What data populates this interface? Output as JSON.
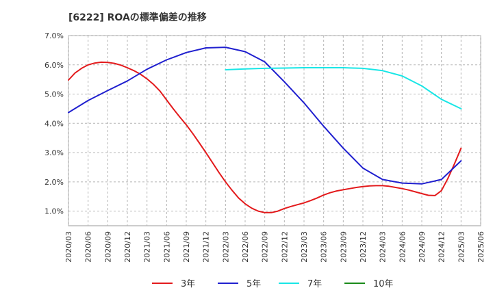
{
  "chart_data": {
    "type": "line",
    "title": "[6222]  ROAの標準偏差の推移",
    "xlabel": "",
    "ylabel": "",
    "ylim": [
      0.5,
      7.0
    ],
    "yticks": [
      1.0,
      2.0,
      3.0,
      4.0,
      5.0,
      6.0,
      7.0
    ],
    "ytick_labels": [
      "1.0%",
      "2.0%",
      "3.0%",
      "4.0%",
      "5.0%",
      "6.0%",
      "7.0%"
    ],
    "xticks": [
      "2020/03",
      "2020/06",
      "2020/09",
      "2020/12",
      "2021/03",
      "2021/06",
      "2021/09",
      "2021/12",
      "2022/03",
      "2022/06",
      "2022/09",
      "2022/12",
      "2023/03",
      "2023/06",
      "2023/09",
      "2023/12",
      "2024/03",
      "2024/06",
      "2024/09",
      "2024/12",
      "2025/03",
      "2025/06"
    ],
    "grid": true,
    "legend_position": "bottom",
    "series": [
      {
        "name": "3年",
        "color": "#e31a1c",
        "x": [
          "2020/03",
          "2020/04",
          "2020/05",
          "2020/06",
          "2020/07",
          "2020/08",
          "2020/09",
          "2020/10",
          "2020/11",
          "2020/12",
          "2021/01",
          "2021/02",
          "2021/03",
          "2021/04",
          "2021/05",
          "2021/06",
          "2021/07",
          "2021/08",
          "2021/09",
          "2021/10",
          "2021/11",
          "2021/12",
          "2022/01",
          "2022/02",
          "2022/03",
          "2022/04",
          "2022/05",
          "2022/06",
          "2022/07",
          "2022/08",
          "2022/09",
          "2022/10",
          "2022/11",
          "2022/12",
          "2023/01",
          "2023/02",
          "2023/03",
          "2023/04",
          "2023/05",
          "2023/06",
          "2023/07",
          "2023/08",
          "2023/09",
          "2023/10",
          "2023/11",
          "2023/12",
          "2024/01",
          "2024/02",
          "2024/03",
          "2024/04",
          "2024/05",
          "2024/06",
          "2024/07",
          "2024/08",
          "2024/09",
          "2024/10",
          "2024/11",
          "2024/12",
          "2025/01",
          "2025/02",
          "2025/03"
        ],
        "values": [
          5.48,
          5.72,
          5.88,
          6.0,
          6.06,
          6.09,
          6.08,
          6.05,
          5.99,
          5.9,
          5.8,
          5.68,
          5.52,
          5.33,
          5.1,
          4.8,
          4.5,
          4.22,
          3.95,
          3.65,
          3.33,
          3.0,
          2.66,
          2.32,
          2.0,
          1.71,
          1.45,
          1.25,
          1.1,
          1.0,
          0.95,
          0.95,
          1.0,
          1.09,
          1.16,
          1.22,
          1.28,
          1.36,
          1.45,
          1.55,
          1.63,
          1.69,
          1.73,
          1.77,
          1.81,
          1.84,
          1.86,
          1.87,
          1.87,
          1.85,
          1.81,
          1.77,
          1.72,
          1.66,
          1.6,
          1.54,
          1.53,
          1.7,
          2.12,
          2.62,
          3.15
        ]
      },
      {
        "name": "5年",
        "color": "#1f1fcf",
        "x": [
          "2020/03",
          "2020/06",
          "2020/09",
          "2020/12",
          "2021/03",
          "2021/06",
          "2021/09",
          "2021/12",
          "2022/03",
          "2022/06",
          "2022/09",
          "2022/12",
          "2023/03",
          "2023/06",
          "2023/09",
          "2023/12",
          "2024/03",
          "2024/06",
          "2024/09",
          "2024/12",
          "2025/03"
        ],
        "values": [
          4.37,
          4.78,
          5.12,
          5.45,
          5.85,
          6.17,
          6.42,
          6.58,
          6.6,
          6.45,
          6.1,
          5.42,
          4.7,
          3.9,
          3.15,
          2.47,
          2.08,
          1.96,
          1.93,
          2.08,
          2.72
        ]
      },
      {
        "name": "7年",
        "color": "#19e6e6",
        "x": [
          "2022/03",
          "2022/06",
          "2022/09",
          "2022/12",
          "2023/03",
          "2023/06",
          "2023/09",
          "2023/12",
          "2024/03",
          "2024/06",
          "2024/09",
          "2024/12",
          "2025/03"
        ],
        "values": [
          5.83,
          5.86,
          5.88,
          5.89,
          5.9,
          5.9,
          5.9,
          5.88,
          5.8,
          5.62,
          5.28,
          4.82,
          4.5
        ]
      },
      {
        "name": "10年",
        "color": "#1a8a1a",
        "x": [],
        "values": []
      }
    ]
  }
}
